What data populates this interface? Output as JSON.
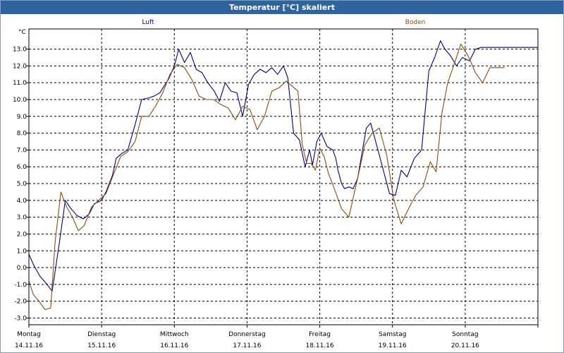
{
  "window": {
    "title": "Temperatur [°C] skaliert"
  },
  "chart_data": {
    "type": "line",
    "title": "Temperatur [°C] skaliert",
    "ylabel": "°C",
    "ylim": [
      -3.4,
      14.2
    ],
    "grid": true,
    "y_ticks": [
      -3.0,
      -2.0,
      -1.0,
      0.0,
      1.0,
      2.0,
      3.0,
      4.0,
      5.0,
      6.0,
      7.0,
      8.0,
      9.0,
      10.0,
      11.0,
      12.0,
      13.0
    ],
    "y_tick_labels": [
      "-3.0",
      "-2.0",
      "-1.0",
      "0.0",
      "1.0",
      "2.0",
      "3.0",
      "4.0",
      "5.0",
      "6.0",
      "7.0",
      "8.0",
      "9.0",
      "10.0",
      "11.0",
      "12.0",
      "13.0"
    ],
    "x_unit": "days since 14.11.16 00:00",
    "xlim": [
      0,
      7
    ],
    "categories": [
      {
        "day": "Montag",
        "date": "14.11.16"
      },
      {
        "day": "Dienstag",
        "date": "15.11.16"
      },
      {
        "day": "Mittwoch",
        "date": "16.11.16"
      },
      {
        "day": "Donnerstag",
        "date": "17.11.16"
      },
      {
        "day": "Freitag",
        "date": "18.11.16"
      },
      {
        "day": "Samstag",
        "date": "19.11.16"
      },
      {
        "day": "Sonntag",
        "date": "20.11.16"
      }
    ],
    "series": [
      {
        "name": "Luft",
        "color": "#000080",
        "legend_position": "top-left",
        "x": [
          0,
          0.06,
          0.15,
          0.25,
          0.32,
          0.42,
          0.5,
          0.58,
          0.66,
          0.75,
          0.83,
          0.9,
          1.0,
          1.06,
          1.15,
          1.2,
          1.28,
          1.36,
          1.46,
          1.55,
          1.65,
          1.72,
          1.8,
          1.86,
          1.92,
          2.0,
          2.06,
          2.14,
          2.22,
          2.3,
          2.38,
          2.46,
          2.55,
          2.62,
          2.7,
          2.78,
          2.86,
          2.94,
          3.02,
          3.1,
          3.18,
          3.26,
          3.34,
          3.42,
          3.5,
          3.56,
          3.64,
          3.72,
          3.8,
          3.86,
          3.9,
          3.96,
          4.02,
          4.1,
          4.18,
          4.22,
          4.25,
          4.3,
          4.34,
          4.4,
          4.46,
          4.52,
          4.58,
          4.64,
          4.7,
          4.8,
          4.88,
          4.96,
          5.04,
          5.12,
          5.2,
          5.3,
          5.4,
          5.5,
          5.58,
          5.66,
          5.72,
          5.8,
          5.88,
          5.96,
          6.06,
          6.14,
          6.22,
          6.3,
          6.38,
          6.46,
          6.52,
          6.58,
          6.64,
          6.7,
          6.76,
          6.82,
          6.88,
          6.96,
          7.0
        ],
        "values": [
          0.8,
          0.2,
          -0.5,
          -1.0,
          -1.4,
          1.5,
          4.0,
          3.5,
          3.1,
          2.9,
          3.2,
          3.8,
          4.0,
          4.5,
          5.5,
          6.5,
          6.8,
          7.0,
          8.5,
          10.0,
          10.1,
          10.2,
          10.4,
          10.8,
          11.2,
          12.0,
          13.0,
          12.2,
          12.8,
          11.8,
          11.6,
          11.0,
          10.5,
          9.9,
          11.0,
          10.5,
          10.4,
          9.0,
          10.9,
          11.5,
          11.8,
          11.6,
          11.9,
          11.5,
          12.0,
          11.3,
          8.0,
          7.6,
          6.0,
          7.0,
          6.1,
          7.5,
          8.0,
          7.2,
          7.0,
          6.5,
          5.8,
          5.0,
          4.7,
          4.8,
          4.7,
          5.3,
          6.8,
          8.3,
          8.6,
          7.0,
          5.7,
          4.4,
          4.3,
          5.8,
          5.4,
          6.5,
          7.0,
          11.7,
          12.5,
          13.5,
          13.0,
          12.6,
          12.0,
          12.5,
          12.3,
          13.0,
          13.1,
          13.1,
          13.1,
          13.1,
          13.1,
          13.1,
          13.1,
          13.1,
          13.1,
          13.1,
          13.1,
          13.1,
          13.1
        ]
      },
      {
        "name": "Boden",
        "color": "#8b4c0e",
        "legend_position": "top-right",
        "x": [
          0,
          0.06,
          0.14,
          0.22,
          0.3,
          0.36,
          0.44,
          0.52,
          0.6,
          0.68,
          0.76,
          0.86,
          0.96,
          1.06,
          1.16,
          1.26,
          1.36,
          1.46,
          1.55,
          1.65,
          1.74,
          1.84,
          1.94,
          2.04,
          2.14,
          2.24,
          2.34,
          2.44,
          2.54,
          2.64,
          2.74,
          2.84,
          2.94,
          3.04,
          3.14,
          3.24,
          3.34,
          3.44,
          3.54,
          3.62,
          3.7,
          3.76,
          3.82,
          3.88,
          3.94,
          4.0,
          4.06,
          4.12,
          4.2,
          4.3,
          4.4,
          4.52,
          4.62,
          4.72,
          4.82,
          4.92,
          5.02,
          5.12,
          5.22,
          5.32,
          5.42,
          5.52,
          5.6,
          5.68,
          5.76,
          5.84,
          5.94,
          6.04,
          6.14,
          6.24,
          6.34,
          6.44,
          6.54
        ],
        "values": [
          -0.8,
          -1.6,
          -2.0,
          -2.5,
          -2.4,
          1.5,
          4.5,
          3.6,
          3.0,
          2.2,
          2.5,
          3.6,
          4.0,
          4.4,
          5.5,
          6.6,
          6.9,
          7.5,
          9.0,
          9.0,
          9.6,
          10.4,
          11.5,
          12.1,
          11.9,
          11.2,
          10.2,
          10.0,
          10.0,
          9.7,
          9.5,
          8.8,
          9.6,
          9.4,
          8.2,
          9.0,
          10.5,
          10.7,
          11.1,
          10.8,
          10.5,
          7.3,
          6.2,
          6.2,
          5.8,
          7.1,
          6.6,
          5.6,
          4.7,
          3.5,
          3.0,
          5.3,
          7.3,
          8.0,
          8.3,
          6.7,
          4.0,
          2.6,
          3.5,
          4.3,
          4.8,
          6.3,
          5.7,
          9.2,
          11.0,
          12.0,
          13.3,
          12.6,
          11.6,
          11.0,
          11.9,
          11.9,
          11.9
        ]
      }
    ]
  }
}
